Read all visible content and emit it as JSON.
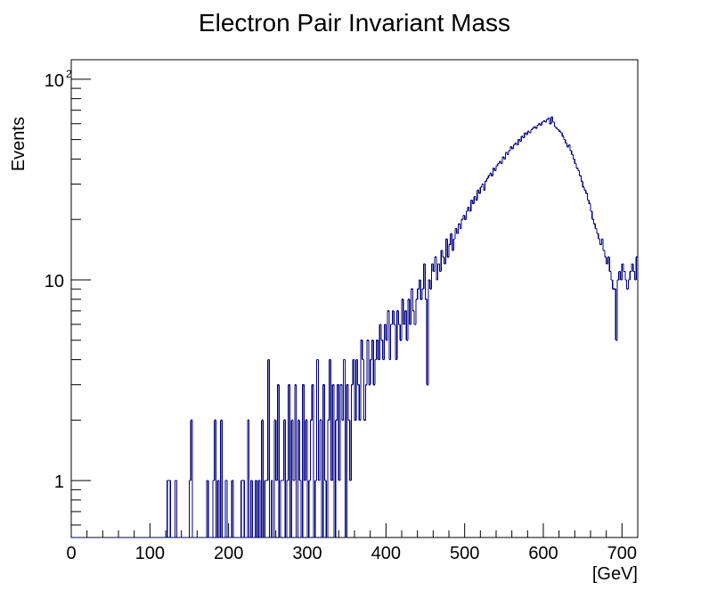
{
  "chart_data": {
    "type": "histogram",
    "title": "Electron Pair Invariant Mass",
    "xlabel": "[GeV]",
    "ylabel": "Events",
    "xlim": [
      0,
      720
    ],
    "ylim": [
      0.52,
      125
    ],
    "y_scale": "log",
    "grid": false,
    "x_ticks": [
      0,
      100,
      200,
      300,
      400,
      500,
      600,
      700
    ],
    "y_ticks": [
      {
        "value": 1,
        "label": "1"
      },
      {
        "value": 10,
        "label": "10"
      },
      {
        "value": 100,
        "label": "10",
        "exponent": "2"
      }
    ],
    "line_color": "#000080",
    "bin_width": 2,
    "x": [
      0,
      2,
      4,
      6,
      8,
      10,
      12,
      14,
      16,
      18,
      20,
      22,
      24,
      26,
      28,
      30,
      32,
      34,
      36,
      38,
      40,
      42,
      44,
      46,
      48,
      50,
      52,
      54,
      56,
      58,
      60,
      62,
      64,
      66,
      68,
      70,
      72,
      74,
      76,
      78,
      80,
      82,
      84,
      86,
      88,
      90,
      92,
      94,
      96,
      98,
      100,
      102,
      104,
      106,
      108,
      110,
      112,
      114,
      116,
      118,
      120,
      122,
      124,
      126,
      128,
      130,
      132,
      134,
      136,
      138,
      140,
      142,
      144,
      146,
      148,
      150,
      152,
      154,
      156,
      158,
      160,
      162,
      164,
      166,
      168,
      170,
      172,
      174,
      176,
      178,
      180,
      182,
      184,
      186,
      188,
      190,
      192,
      194,
      196,
      198,
      200,
      202,
      204,
      206,
      208,
      210,
      212,
      214,
      216,
      218,
      220,
      222,
      224,
      226,
      228,
      230,
      232,
      234,
      236,
      238,
      240,
      242,
      244,
      246,
      248,
      250,
      252,
      254,
      256,
      258,
      260,
      262,
      264,
      266,
      268,
      270,
      272,
      274,
      276,
      278,
      280,
      282,
      284,
      286,
      288,
      290,
      292,
      294,
      296,
      298,
      300,
      302,
      304,
      306,
      308,
      310,
      312,
      314,
      316,
      318,
      320,
      322,
      324,
      326,
      328,
      330,
      332,
      334,
      336,
      338,
      340,
      342,
      344,
      346,
      348,
      350,
      352,
      354,
      356,
      358,
      360,
      362,
      364,
      366,
      368,
      370,
      372,
      374,
      376,
      378,
      380,
      382,
      384,
      386,
      388,
      390,
      392,
      394,
      396,
      398,
      400,
      402,
      404,
      406,
      408,
      410,
      412,
      414,
      416,
      418,
      420,
      422,
      424,
      426,
      428,
      430,
      432,
      434,
      436,
      438,
      440,
      442,
      444,
      446,
      448,
      450,
      452,
      454,
      456,
      458,
      460,
      462,
      464,
      466,
      468,
      470,
      472,
      474,
      476,
      478,
      480,
      482,
      484,
      486,
      488,
      490,
      492,
      494,
      496,
      498,
      500,
      502,
      504,
      506,
      508,
      510,
      512,
      514,
      516,
      518,
      520,
      522,
      524,
      526,
      528,
      530,
      532,
      534,
      536,
      538,
      540,
      542,
      544,
      546,
      548,
      550,
      552,
      554,
      556,
      558,
      560,
      562,
      564,
      566,
      568,
      570,
      572,
      574,
      576,
      578,
      580,
      582,
      584,
      586,
      588,
      590,
      592,
      594,
      596,
      598,
      600,
      602,
      604,
      606,
      608,
      610,
      612,
      614,
      616,
      618,
      620,
      622,
      624,
      626,
      628,
      630,
      632,
      634,
      636,
      638,
      640,
      642,
      644,
      646,
      648,
      650,
      652,
      654,
      656,
      658,
      660,
      662,
      664,
      666,
      668,
      670,
      672,
      674,
      676,
      678,
      680,
      682,
      684,
      686,
      688,
      690,
      692,
      694,
      696,
      698,
      700,
      702,
      704,
      706,
      708,
      710,
      712,
      714,
      716,
      718
    ],
    "values": [
      0,
      0,
      0,
      0,
      0,
      0,
      0,
      0,
      0,
      0,
      0,
      0,
      0,
      0,
      0,
      0,
      0,
      0,
      0,
      0,
      0,
      0,
      0,
      0,
      0,
      0,
      0,
      0,
      0,
      0,
      0,
      0,
      0,
      0,
      0,
      0,
      0,
      0,
      0,
      0,
      0,
      0,
      0,
      0,
      0,
      0,
      0,
      0,
      0,
      0,
      0,
      0,
      0,
      0,
      0,
      0,
      0,
      0,
      0,
      0,
      0,
      1,
      1,
      0,
      0,
      0,
      1,
      0,
      0,
      0,
      0,
      0,
      0,
      0,
      0,
      1,
      2,
      0,
      0,
      0,
      0,
      0,
      0,
      0,
      0,
      0,
      1,
      0,
      0,
      0,
      1,
      2,
      0,
      1,
      0,
      2,
      0,
      0,
      1,
      0,
      0,
      0,
      1,
      0,
      0,
      0,
      0,
      0,
      1,
      1,
      0,
      0,
      2,
      0,
      1,
      0,
      0,
      1,
      0,
      1,
      0,
      2,
      0,
      1,
      1,
      4,
      0,
      1,
      0,
      2,
      1,
      3,
      0,
      1,
      1,
      2,
      0,
      1,
      3,
      0,
      2,
      1,
      3,
      0,
      2,
      1,
      0,
      3,
      1,
      2,
      0,
      1,
      2,
      3,
      0,
      1,
      4,
      1,
      2,
      0,
      3,
      1,
      0,
      2,
      4,
      1,
      3,
      0,
      2,
      3,
      1,
      3,
      2,
      4,
      0,
      3,
      2,
      1,
      3,
      4,
      2,
      4,
      3,
      2,
      5,
      4,
      2,
      3,
      5,
      3,
      4,
      5,
      3,
      4,
      5,
      4,
      6,
      5,
      4,
      6,
      5,
      7,
      4,
      6,
      7,
      6,
      4,
      7,
      6,
      5,
      8,
      6,
      7,
      5,
      8,
      6,
      9,
      7,
      6,
      8,
      9,
      10,
      8,
      9,
      12,
      8,
      3,
      10,
      9,
      12,
      11,
      13,
      10,
      12,
      11,
      14,
      13,
      12,
      16,
      13,
      15,
      17,
      14,
      16,
      18,
      17,
      19,
      18,
      20,
      21,
      20,
      22,
      23,
      22,
      25,
      24,
      26,
      25,
      28,
      27,
      29,
      30,
      28,
      31,
      32,
      33,
      34,
      33,
      36,
      35,
      37,
      38,
      39,
      38,
      41,
      40,
      43,
      42,
      44,
      46,
      45,
      47,
      48,
      47,
      50,
      49,
      52,
      51,
      54,
      53,
      55,
      54,
      56,
      57,
      58,
      57,
      59,
      60,
      59,
      61,
      62,
      61,
      63,
      64,
      60,
      65,
      61,
      58,
      57,
      56,
      55,
      54,
      52,
      50,
      48,
      46,
      47,
      44,
      42,
      40,
      38,
      36,
      35,
      33,
      31,
      29,
      28,
      27,
      25,
      24,
      22,
      20,
      19,
      18,
      17,
      16,
      15,
      16,
      14,
      13,
      12,
      13,
      11,
      10,
      9,
      9,
      5,
      10,
      11,
      10,
      12,
      11,
      10,
      9,
      10,
      11,
      12,
      11,
      10,
      13
    ]
  }
}
